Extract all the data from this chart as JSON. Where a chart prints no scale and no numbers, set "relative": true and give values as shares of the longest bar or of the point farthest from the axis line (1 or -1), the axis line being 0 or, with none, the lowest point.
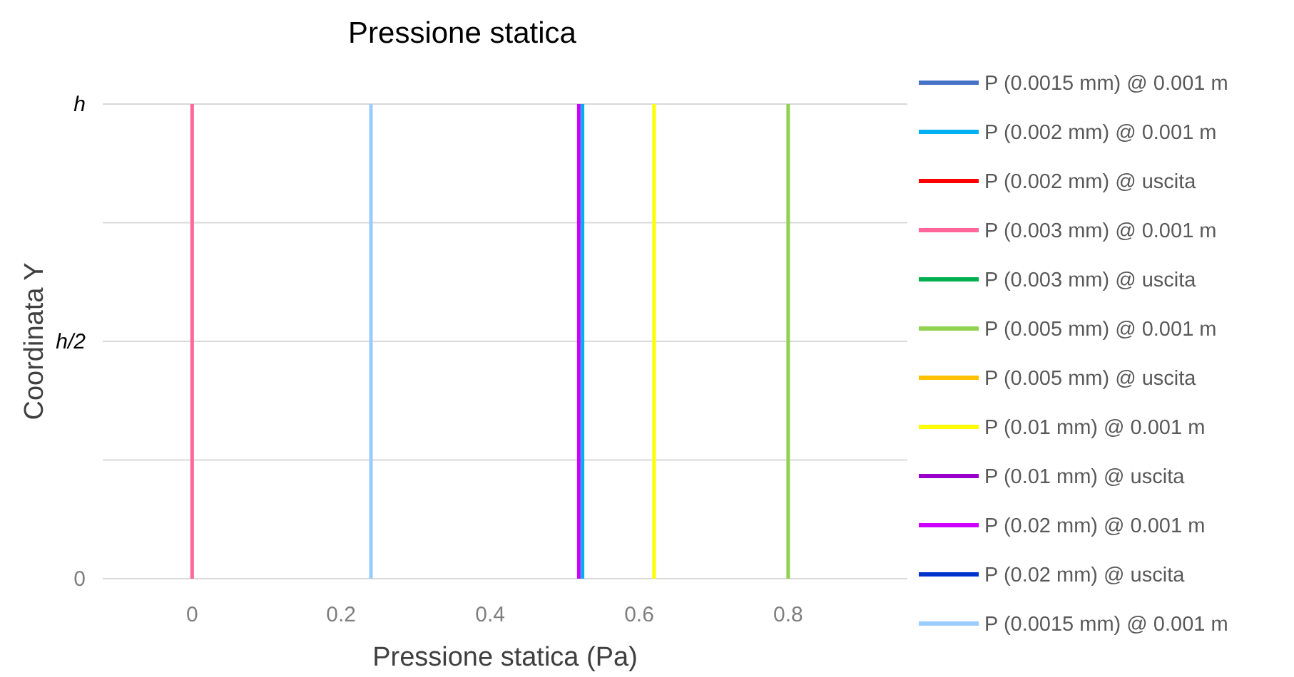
{
  "chart_data": {
    "type": "line",
    "title": "Pressione statica",
    "xlabel": "Pressione statica (Pa)",
    "ylabel": "Coordinata Y",
    "xlim": [
      -0.12,
      0.96
    ],
    "xticks": [
      0,
      0.2,
      0.4,
      0.6,
      0.8
    ],
    "relative": true,
    "annotations": [
      "0",
      "h/2",
      "h"
    ],
    "grid": "y",
    "legend": "right",
    "marker": "none",
    "line_style": "solid",
    "series": [
      {
        "name": "P (0.0015 mm) @ 0.001 m",
        "color": "#4472c4",
        "x": [
          null,
          null
        ],
        "values": [
          null,
          null
        ]
      },
      {
        "name": "P (0.002 mm) @ 0.001 m",
        "color": "#00b0f0",
        "x": [
          0.524,
          0.524
        ],
        "values": [
          0,
          1
        ]
      },
      {
        "name": "P (0.002 mm) @ uscita",
        "color": "#ff0000",
        "x": [
          null,
          null
        ],
        "values": [
          null,
          null
        ]
      },
      {
        "name": "P (0.003 mm) @ 0.001 m",
        "color": "#ff6699",
        "x": [
          0,
          0
        ],
        "values": [
          0,
          1
        ]
      },
      {
        "name": "P (0.003 mm) @ uscita",
        "color": "#00b050",
        "x": [
          null,
          null
        ],
        "values": [
          null,
          null
        ]
      },
      {
        "name": "P (0.005 mm) @ 0.001 m",
        "color": "#92d050",
        "x": [
          0.8,
          0.8
        ],
        "values": [
          0,
          1
        ]
      },
      {
        "name": "P (0.005 mm) @ uscita",
        "color": "#ffc000",
        "x": [
          null,
          null
        ],
        "values": [
          null,
          null
        ]
      },
      {
        "name": "P (0.01 mm) @ 0.001 m",
        "color": "#ffff00",
        "x": [
          0.62,
          0.62
        ],
        "values": [
          0,
          1
        ]
      },
      {
        "name": "P (0.01 mm) @ uscita",
        "color": "#9900cc",
        "x": [
          null,
          null
        ],
        "values": [
          null,
          null
        ]
      },
      {
        "name": "P (0.02 mm) @ 0.001 m",
        "color": "#cc00ff",
        "x": [
          0.519,
          0.519
        ],
        "values": [
          0,
          1
        ]
      },
      {
        "name": "P (0.02 mm) @ uscita",
        "color": "#0033cc",
        "x": [
          null,
          null
        ],
        "values": [
          null,
          null
        ]
      },
      {
        "name": "P (0.0015 mm) @ 0.001 m",
        "color": "#99ccff",
        "x": [
          0.24,
          0.24
        ],
        "values": [
          0,
          1
        ]
      }
    ]
  }
}
